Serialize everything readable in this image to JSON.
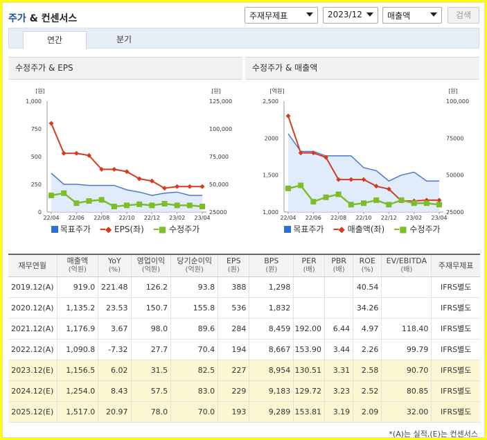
{
  "header": {
    "title_main": "주가",
    "title_rest": " & 컨센서스",
    "select_report": "주재무제표",
    "select_period": "2023/12",
    "select_metric": "매출액",
    "search_label": "검색"
  },
  "tabs": [
    "연간",
    "분기"
  ],
  "charts": [
    {
      "title": "수정주가 & EPS",
      "left_unit": "[원]",
      "right_unit": "[원]",
      "left_ticks": [
        "1,000",
        "750",
        "500",
        "250",
        "0"
      ],
      "right_ticks": [
        "125,000",
        "100,000",
        "75,000",
        "50,000",
        "25000"
      ],
      "x_ticks": [
        "22/04",
        "22/06",
        "22/08",
        "22/10",
        "22/12",
        "23/02",
        "23/04"
      ],
      "legend": [
        "목표주가",
        "EPS(좌)",
        "수정주가"
      ]
    },
    {
      "title": "수정주가 & 매출액",
      "left_unit": "[억원]",
      "right_unit": "[원]",
      "left_ticks": [
        "2,500",
        "2000",
        "1,500",
        "1,000"
      ],
      "right_ticks": [
        "100,000",
        "75000",
        "50000",
        "25000"
      ],
      "x_ticks": [
        "22/04",
        "22/06",
        "22/08",
        "22/10",
        "22/12",
        "23/02",
        "23/04"
      ],
      "legend": [
        "목표주가",
        "매출액(좌)",
        "수정주가"
      ]
    }
  ],
  "chart_data": [
    {
      "type": "line",
      "title": "수정주가 & EPS",
      "x": [
        "22/04",
        "22/05",
        "22/06",
        "22/07",
        "22/08",
        "22/09",
        "22/10",
        "22/11",
        "22/12",
        "23/01",
        "23/02",
        "23/03",
        "23/04"
      ],
      "y_left_lim": [
        0,
        1000
      ],
      "y_right_lim": [
        25000,
        125000
      ],
      "series": [
        {
          "name": "목표주가",
          "axis": "right",
          "color": "#4a78cc",
          "values": [
            60000,
            50000,
            50000,
            49000,
            49000,
            49000,
            45000,
            43000,
            40000,
            42000,
            43000,
            40000,
            40000
          ]
        },
        {
          "name": "EPS(좌)",
          "axis": "left",
          "color": "#d23c1e",
          "values": [
            800,
            530,
            530,
            510,
            385,
            385,
            365,
            300,
            280,
            215,
            230,
            230,
            230
          ]
        },
        {
          "name": "수정주가",
          "axis": "right",
          "color": "#7dbd2a",
          "values": [
            40000,
            42000,
            33000,
            35000,
            36000,
            30000,
            31000,
            32000,
            31000,
            32500,
            31000,
            31000,
            30000
          ]
        }
      ]
    },
    {
      "type": "line",
      "title": "수정주가 & 매출액",
      "x": [
        "22/04",
        "22/05",
        "22/06",
        "22/07",
        "22/08",
        "22/09",
        "22/10",
        "22/11",
        "22/12",
        "23/01",
        "23/02",
        "23/03",
        "23/04"
      ],
      "y_left_lim": [
        1000,
        2500
      ],
      "y_right_lim": [
        25000,
        100000
      ],
      "series": [
        {
          "name": "목표주가",
          "axis": "right",
          "color": "#4a78cc",
          "values": [
            78000,
            66000,
            66000,
            63000,
            63000,
            63000,
            55000,
            53000,
            46000,
            50000,
            52000,
            46000,
            46000
          ]
        },
        {
          "name": "매출액(좌)",
          "axis": "left",
          "color": "#d23c1e",
          "values": [
            2300,
            1800,
            1800,
            1740,
            1440,
            1440,
            1440,
            1350,
            1310,
            1150,
            1150,
            1160,
            1160
          ]
        },
        {
          "name": "수정주가",
          "axis": "right",
          "color": "#7dbd2a",
          "values": [
            41000,
            43000,
            32000,
            35000,
            37000,
            30000,
            31000,
            33000,
            30000,
            33000,
            31000,
            31000,
            30000
          ]
        }
      ]
    }
  ],
  "table": {
    "headers": [
      {
        "label": "재무연월",
        "unit": ""
      },
      {
        "label": "매출액",
        "unit": "(억원)"
      },
      {
        "label": "YoY",
        "unit": "(%)"
      },
      {
        "label": "영업이익",
        "unit": "(억원)"
      },
      {
        "label": "당기순이익",
        "unit": "(억원)"
      },
      {
        "label": "EPS",
        "unit": "(원)"
      },
      {
        "label": "BPS",
        "unit": "(원)"
      },
      {
        "label": "PER",
        "unit": "(배)"
      },
      {
        "label": "PBR",
        "unit": "(배)"
      },
      {
        "label": "ROE",
        "unit": "(%)"
      },
      {
        "label": "EV/EBITDA",
        "unit": "(배)"
      },
      {
        "label": "주재무제표",
        "unit": ""
      }
    ],
    "rows": [
      {
        "est": false,
        "cells": [
          "2019.12(A)",
          "919.0",
          "221.48",
          "126.2",
          "93.8",
          "388",
          "1,298",
          "",
          "",
          "40.54",
          "",
          "IFRS별도"
        ]
      },
      {
        "est": false,
        "cells": [
          "2020.12(A)",
          "1,135.2",
          "23.53",
          "150.7",
          "155.8",
          "536",
          "1,832",
          "",
          "",
          "34.26",
          "",
          "IFRS별도"
        ]
      },
      {
        "est": false,
        "cells": [
          "2021.12(A)",
          "1,176.9",
          "3.67",
          "98.0",
          "89.6",
          "284",
          "8,459",
          "192.00",
          "6.44",
          "4.97",
          "118.40",
          "IFRS별도"
        ]
      },
      {
        "est": false,
        "cells": [
          "2022.12(A)",
          "1,090.8",
          "-7.32",
          "27.7",
          "70.4",
          "194",
          "8,667",
          "153.90",
          "3.44",
          "2.26",
          "99.79",
          "IFRS별도"
        ]
      },
      {
        "est": true,
        "cells": [
          "2023.12(E)",
          "1,156.5",
          "6.02",
          "31.5",
          "82.5",
          "227",
          "8,954",
          "130.51",
          "3.31",
          "2.58",
          "90.70",
          "IFRS별도"
        ]
      },
      {
        "est": true,
        "cells": [
          "2024.12(E)",
          "1,254.0",
          "8.43",
          "57.5",
          "83.0",
          "229",
          "9,183",
          "129.72",
          "3.23",
          "2.52",
          "80.85",
          "IFRS별도"
        ]
      },
      {
        "est": true,
        "cells": [
          "2025.12(E)",
          "1,517.0",
          "20.97",
          "78.0",
          "70.0",
          "193",
          "9,289",
          "153.81",
          "3.19",
          "2.09",
          "32.00",
          "IFRS별도"
        ]
      }
    ]
  },
  "footnote": "*(A)는 실적,(E)는 컨센서스"
}
